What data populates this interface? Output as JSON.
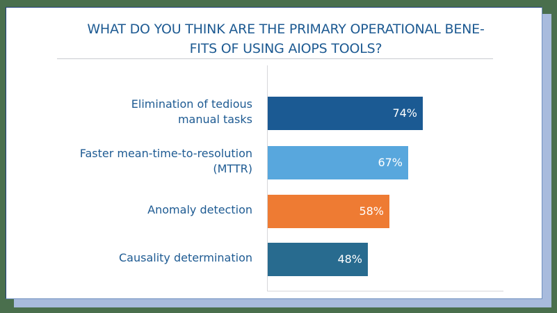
{
  "chart_data": {
    "type": "bar",
    "orientation": "horizontal",
    "title": "WHAT DO YOU THINK ARE THE PRIMARY OPERATIONAL BENEFITS OF USING AIOPS TOOLS?",
    "title_lines": [
      "WHAT DO YOU THINK ARE THE PRIMARY OPERATIONAL BENE-",
      "FITS OF USING AIOPS TOOLS?"
    ],
    "categories": [
      "Elimination of tedious manual tasks",
      "Faster mean-time-to-resolution (MTTR)",
      "Anomaly detection",
      "Causality determination"
    ],
    "category_lines": [
      [
        "Elimination of tedious",
        "manual tasks"
      ],
      [
        "Faster mean-time-to-resolution",
        "(MTTR)"
      ],
      [
        "Anomaly detection"
      ],
      [
        "Causality determination"
      ]
    ],
    "values": [
      74,
      67,
      58,
      48
    ],
    "value_labels": [
      "74%",
      "67%",
      "58%",
      "48%"
    ],
    "colors": [
      "#1b5a93",
      "#58a7dd",
      "#ee7b33",
      "#286b8f"
    ],
    "xlabel": "",
    "ylabel": "",
    "xlim": [
      0,
      100
    ],
    "unit": "%",
    "grid": false,
    "legend": null
  },
  "style": {
    "title_color": "#1d5a92",
    "label_color": "#1d5a92",
    "background": "#4a6f4d",
    "shadow_color": "#a8bbdd",
    "card_color": "#ffffff"
  }
}
